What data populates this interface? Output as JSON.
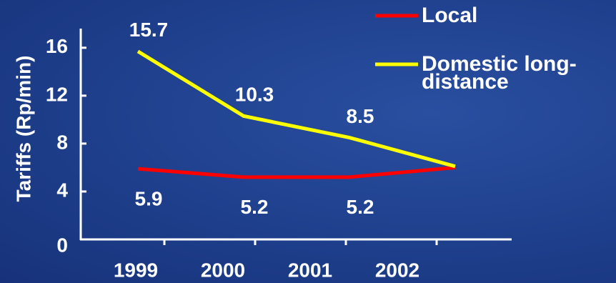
{
  "chart_data": {
    "type": "line",
    "y_label": "Tariffs (Rp/min)",
    "categories": [
      "1999",
      "2000",
      "2001",
      "2002"
    ],
    "series": [
      {
        "name": "Local",
        "color": "#ff0000",
        "values": [
          5.9,
          5.2,
          5.2,
          6.0
        ],
        "value_labels": [
          "5.9",
          "5.2",
          "5.2",
          null
        ]
      },
      {
        "name": "Domestic long-distance",
        "color": "#ffff00",
        "values": [
          15.7,
          10.3,
          8.5,
          6.1
        ],
        "value_labels": [
          "15.7",
          "10.3",
          "8.5",
          null
        ]
      }
    ],
    "ylim": [
      0,
      17.6
    ],
    "yticks": [
      0,
      4,
      8,
      12,
      16
    ]
  }
}
